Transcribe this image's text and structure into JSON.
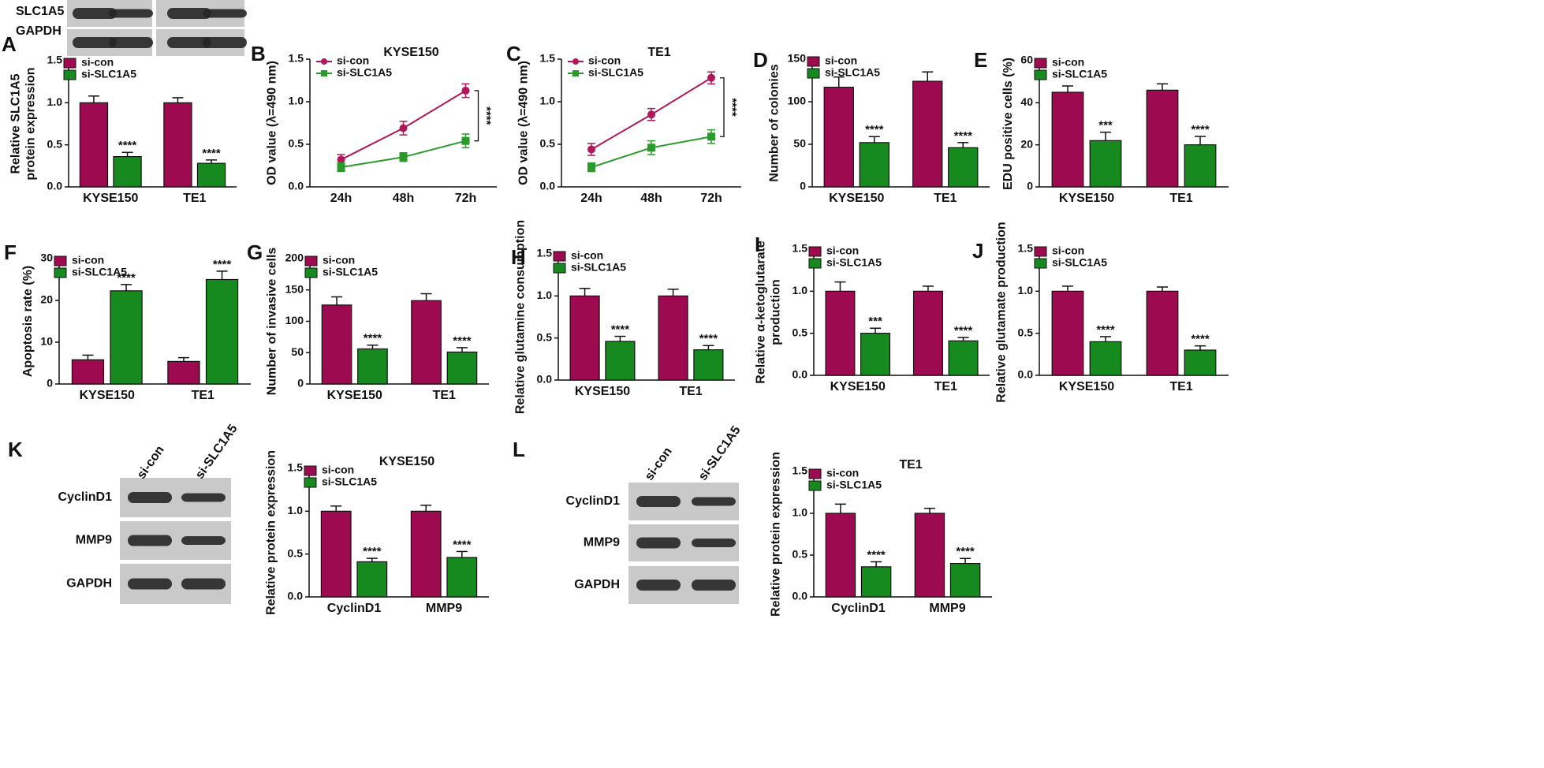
{
  "chart_data": [
    {
      "panel": "A",
      "type": "bar",
      "ylabel": [
        "Relative SLC1A5",
        "protein expression"
      ],
      "categories": [
        "KYSE150",
        "TE1"
      ],
      "legend": "upper left",
      "series": [
        {
          "name": "si-con",
          "color": "#9e0a4f",
          "values": [
            1.0,
            1.0
          ],
          "errors": [
            0.08,
            0.06
          ]
        },
        {
          "name": "si-SLC1A5",
          "color": "#178a1f",
          "values": [
            0.36,
            0.28
          ],
          "errors": [
            0.05,
            0.04
          ],
          "sig": [
            "****",
            "****"
          ]
        }
      ],
      "ylim": [
        0,
        1.5
      ],
      "yticks": [
        {
          "value": 0,
          "label": "0.0"
        },
        0.5,
        {
          "value": 1,
          "label": "1.0"
        },
        1.5
      ]
    },
    {
      "panel": "B",
      "type": "line",
      "title": "KYSE150",
      "ylabel": [
        "OD value (λ=490 nm)"
      ],
      "categories": [
        "24h",
        "48h",
        "72h"
      ],
      "legend": "upper left",
      "series": [
        {
          "name": "si-con",
          "color": "#b0185a",
          "values": [
            0.32,
            0.69,
            1.13
          ],
          "errors": [
            0.06,
            0.08,
            0.08
          ]
        },
        {
          "name": "si-SLC1A5",
          "color": "#2a9a2a",
          "values": [
            0.23,
            0.35,
            0.54
          ],
          "errors": [
            0.05,
            0.05,
            0.08
          ]
        }
      ],
      "bracket_label": "****",
      "ylim": [
        0,
        1.5
      ],
      "yticks": [
        {
          "value": 0,
          "label": "0.0"
        },
        0.5,
        {
          "value": 1,
          "label": "1.0"
        },
        1.5
      ]
    },
    {
      "panel": "C",
      "type": "line",
      "title": "TE1",
      "ylabel": [
        "OD value (λ=490 nm)"
      ],
      "categories": [
        "24h",
        "48h",
        "72h"
      ],
      "legend": "upper left",
      "series": [
        {
          "name": "si-con",
          "color": "#b0185a",
          "values": [
            0.44,
            0.85,
            1.28
          ],
          "errors": [
            0.07,
            0.07,
            0.07
          ]
        },
        {
          "name": "si-SLC1A5",
          "color": "#2a9a2a",
          "values": [
            0.23,
            0.46,
            0.59
          ],
          "errors": [
            0.05,
            0.08,
            0.08
          ]
        }
      ],
      "bracket_label": "****",
      "ylim": [
        0,
        1.5
      ],
      "yticks": [
        {
          "value": 0,
          "label": "0.0"
        },
        0.5,
        {
          "value": 1,
          "label": "1.0"
        },
        1.5
      ]
    },
    {
      "panel": "D",
      "type": "bar",
      "ylabel": [
        "Number of colonies"
      ],
      "categories": [
        "KYSE150",
        "TE1"
      ],
      "legend": "upper left",
      "series": [
        {
          "name": "si-con",
          "color": "#9e0a4f",
          "values": [
            117,
            124
          ],
          "errors": [
            12,
            11
          ]
        },
        {
          "name": "si-SLC1A5",
          "color": "#178a1f",
          "values": [
            52,
            46
          ],
          "errors": [
            7,
            6
          ],
          "sig": [
            "****",
            "****"
          ]
        }
      ],
      "ylim": [
        0,
        150
      ],
      "yticks": [
        0,
        50,
        100,
        150
      ]
    },
    {
      "panel": "E",
      "type": "bar",
      "ylabel": [
        "EDU positive cells (%)"
      ],
      "categories": [
        "KYSE150",
        "TE1"
      ],
      "legend": "upper left",
      "series": [
        {
          "name": "si-con",
          "color": "#9e0a4f",
          "values": [
            45,
            46
          ],
          "errors": [
            3,
            3
          ]
        },
        {
          "name": "si-SLC1A5",
          "color": "#178a1f",
          "values": [
            22,
            20
          ],
          "errors": [
            4,
            4
          ],
          "sig": [
            "***",
            "****"
          ]
        }
      ],
      "ylim": [
        0,
        60
      ],
      "yticks": [
        0,
        20,
        40,
        60
      ]
    },
    {
      "panel": "F",
      "type": "bar",
      "ylabel": [
        "Apoptosis rate (%)"
      ],
      "categories": [
        "KYSE150",
        "TE1"
      ],
      "legend": "upper left",
      "series": [
        {
          "name": "si-con",
          "color": "#9e0a4f",
          "values": [
            5.8,
            5.4
          ],
          "errors": [
            1.1,
            0.9
          ]
        },
        {
          "name": "si-SLC1A5",
          "color": "#178a1f",
          "values": [
            22.3,
            25
          ],
          "errors": [
            1.5,
            2
          ],
          "sig": [
            "****",
            "****"
          ]
        }
      ],
      "ylim": [
        0,
        30
      ],
      "yticks": [
        0,
        10,
        20,
        30
      ]
    },
    {
      "panel": "G",
      "type": "bar",
      "ylabel": [
        "Number of invasive cells"
      ],
      "categories": [
        "KYSE150",
        "TE1"
      ],
      "legend": "upper left",
      "series": [
        {
          "name": "si-con",
          "color": "#9e0a4f",
          "values": [
            126,
            133
          ],
          "errors": [
            13,
            11
          ]
        },
        {
          "name": "si-SLC1A5",
          "color": "#178a1f",
          "values": [
            56,
            51
          ],
          "errors": [
            6,
            7
          ],
          "sig": [
            "****",
            "****"
          ]
        }
      ],
      "ylim": [
        0,
        200
      ],
      "yticks": [
        0,
        50,
        100,
        150,
        200
      ]
    },
    {
      "panel": "H",
      "type": "bar",
      "ylabel": [
        "Relative glutamine consumption"
      ],
      "categories": [
        "KYSE150",
        "TE1"
      ],
      "legend": "upper left",
      "series": [
        {
          "name": "si-con",
          "color": "#9e0a4f",
          "values": [
            1.0,
            1.0
          ],
          "errors": [
            0.09,
            0.08
          ]
        },
        {
          "name": "si-SLC1A5",
          "color": "#178a1f",
          "values": [
            0.46,
            0.36
          ],
          "errors": [
            0.06,
            0.05
          ],
          "sig": [
            "****",
            "****"
          ]
        }
      ],
      "ylim": [
        0,
        1.5
      ],
      "yticks": [
        {
          "value": 0,
          "label": "0.0"
        },
        0.5,
        {
          "value": 1,
          "label": "1.0"
        },
        1.5
      ]
    },
    {
      "panel": "I",
      "type": "bar",
      "ylabel": [
        "Relative α-ketoglutarate",
        "production"
      ],
      "categories": [
        "KYSE150",
        "TE1"
      ],
      "legend": "upper left",
      "series": [
        {
          "name": "si-con",
          "color": "#9e0a4f",
          "values": [
            1.0,
            1.0
          ],
          "errors": [
            0.11,
            0.06
          ]
        },
        {
          "name": "si-SLC1A5",
          "color": "#178a1f",
          "values": [
            0.5,
            0.41
          ],
          "errors": [
            0.06,
            0.04
          ],
          "sig": [
            "***",
            "****"
          ]
        }
      ],
      "ylim": [
        0,
        1.5
      ],
      "yticks": [
        {
          "value": 0,
          "label": "0.0"
        },
        0.5,
        {
          "value": 1,
          "label": "1.0"
        },
        1.5
      ]
    },
    {
      "panel": "J",
      "type": "bar",
      "ylabel": [
        "Relative glutamate production"
      ],
      "categories": [
        "KYSE150",
        "TE1"
      ],
      "legend": "upper left",
      "series": [
        {
          "name": "si-con",
          "color": "#9e0a4f",
          "values": [
            1.0,
            1.0
          ],
          "errors": [
            0.06,
            0.05
          ]
        },
        {
          "name": "si-SLC1A5",
          "color": "#178a1f",
          "values": [
            0.4,
            0.3
          ],
          "errors": [
            0.06,
            0.05
          ],
          "sig": [
            "****",
            "****"
          ]
        }
      ],
      "ylim": [
        0,
        1.5
      ],
      "yticks": [
        {
          "value": 0,
          "label": "0.0"
        },
        0.5,
        {
          "value": 1,
          "label": "1.0"
        },
        1.5
      ]
    },
    {
      "type": "bar",
      "title": "KYSE150",
      "ylabel": [
        "Relative protein expression"
      ],
      "categories": [
        "CyclinD1",
        "MMP9"
      ],
      "legend": "upper left",
      "series": [
        {
          "name": "si-con",
          "color": "#9e0a4f",
          "values": [
            1.0,
            1.0
          ],
          "errors": [
            0.06,
            0.07
          ]
        },
        {
          "name": "si-SLC1A5",
          "color": "#178a1f",
          "values": [
            0.41,
            0.46
          ],
          "errors": [
            0.04,
            0.07
          ],
          "sig": [
            "****",
            "****"
          ]
        }
      ],
      "ylim": [
        0,
        1.5
      ],
      "yticks": [
        {
          "value": 0,
          "label": "0.0"
        },
        0.5,
        {
          "value": 1,
          "label": "1.0"
        },
        1.5
      ]
    },
    {
      "type": "bar",
      "title": "TE1",
      "ylabel": [
        "Relative protein expression"
      ],
      "categories": [
        "CyclinD1",
        "MMP9"
      ],
      "legend": "upper left",
      "series": [
        {
          "name": "si-con",
          "color": "#9e0a4f",
          "values": [
            1.0,
            1.0
          ],
          "errors": [
            0.11,
            0.06
          ]
        },
        {
          "name": "si-SLC1A5",
          "color": "#178a1f",
          "values": [
            0.36,
            0.4
          ],
          "errors": [
            0.06,
            0.06
          ],
          "sig": [
            "****",
            "****"
          ]
        }
      ],
      "ylim": [
        0,
        1.5
      ],
      "yticks": [
        {
          "value": 0,
          "label": "0.0"
        },
        0.5,
        {
          "value": 1,
          "label": "1.0"
        },
        1.5
      ]
    }
  ],
  "blots": [
    {
      "rows": [
        "SLC1A5",
        "GAPDH"
      ]
    },
    {
      "panel": "K",
      "columns": [
        "si-con",
        "si-SLC1A5"
      ],
      "rows": [
        "CyclinD1",
        "MMP9",
        "GAPDH"
      ]
    },
    {
      "panel": "L",
      "columns": [
        "si-con",
        "si-SLC1A5"
      ],
      "rows": [
        "CyclinD1",
        "MMP9",
        "GAPDH"
      ]
    }
  ]
}
